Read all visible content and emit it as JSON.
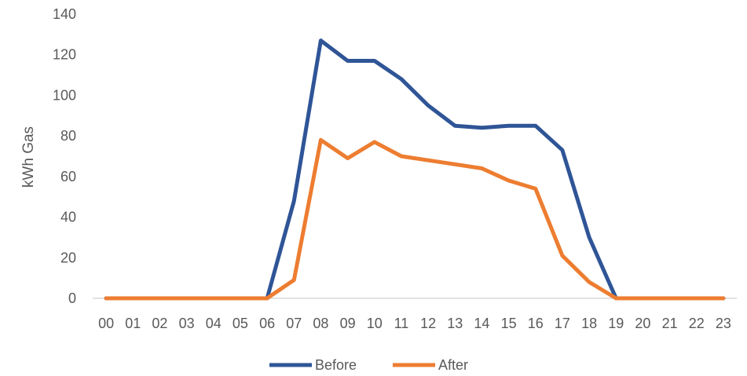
{
  "chart_data": {
    "type": "line",
    "categories": [
      "00",
      "01",
      "02",
      "03",
      "04",
      "05",
      "06",
      "07",
      "08",
      "09",
      "10",
      "11",
      "12",
      "13",
      "14",
      "15",
      "16",
      "17",
      "18",
      "19",
      "20",
      "21",
      "22",
      "23"
    ],
    "series": [
      {
        "name": "Before",
        "color": "#2F5597",
        "values": [
          0,
          0,
          0,
          0,
          0,
          0,
          0,
          48,
          127,
          117,
          117,
          108,
          95,
          85,
          84,
          85,
          85,
          73,
          30,
          0,
          0,
          0,
          0,
          0
        ]
      },
      {
        "name": "After",
        "color": "#ED7D31",
        "values": [
          0,
          0,
          0,
          0,
          0,
          0,
          0,
          9,
          78,
          69,
          77,
          70,
          68,
          66,
          64,
          58,
          54,
          21,
          8,
          0,
          0,
          0,
          0,
          0
        ]
      }
    ],
    "ylabel": "kWh Gas",
    "ylim": [
      0,
      140
    ],
    "yticks": [
      0,
      20,
      40,
      60,
      80,
      100,
      120,
      140
    ],
    "grid": false,
    "legend": "bottom",
    "axis_color": "#D9D9D9"
  }
}
